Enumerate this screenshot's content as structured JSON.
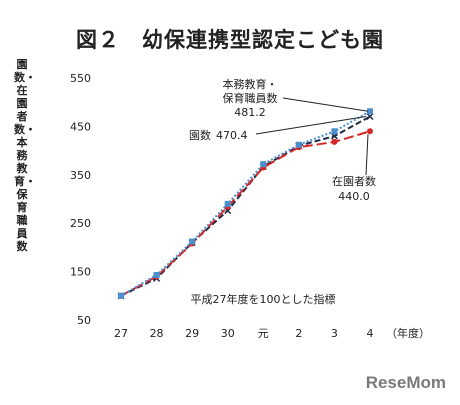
{
  "title": "図２　幼保連携型認定こども園",
  "logo": "ReseMom",
  "chart_data": {
    "type": "line",
    "title": "図２　幼保連携型認定こども園",
    "ylabel": "園数・在園者数・本務教育・保育職員数",
    "xlabel_unit": "（年度）",
    "categories": [
      "27",
      "28",
      "29",
      "30",
      "元",
      "2",
      "3",
      "4"
    ],
    "y_ticks": [
      50,
      150,
      250,
      350,
      450,
      550
    ],
    "ylim": [
      50,
      550
    ],
    "grid": false,
    "note": "平成27年度を100とした指標",
    "series": [
      {
        "name": "園数",
        "values": [
          100,
          136,
          210,
          276,
          367,
          410,
          430,
          470.4
        ],
        "color": "#1f2a44",
        "dash": "6,3",
        "marker": "x"
      },
      {
        "name": "在園者数",
        "values": [
          100,
          140,
          208,
          284,
          365,
          407,
          418,
          440.0
        ],
        "color": "#d62728",
        "dash": "10,4",
        "marker": "dot"
      },
      {
        "name": "本務教育・保育職員数",
        "values": [
          100,
          143,
          212,
          290,
          372,
          412,
          440,
          481.2
        ],
        "color": "#4a8fd0",
        "dash": "2,2",
        "marker": "square"
      }
    ],
    "annotations": [
      {
        "line1": "本務教育・",
        "line2": "保育職員数",
        "value": "481.2"
      },
      {
        "line1": "園数",
        "value": "470.4"
      },
      {
        "line1": "在園者数",
        "value": "440.0"
      }
    ]
  }
}
